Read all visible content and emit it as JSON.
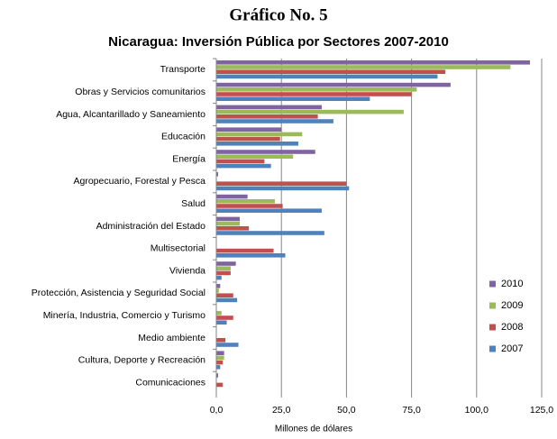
{
  "chart_data": {
    "type": "bar",
    "orientation": "horizontal",
    "title": "Gráfico No. 5",
    "subtitle": "Nicaragua: Inversión Pública por Sectores 2007-2010",
    "x_label": "Millones de dólares",
    "categories": [
      "Transporte",
      "Obras y Servicios comunitarios",
      "Agua, Alcantarillado y Saneamiento",
      "Educación",
      "Energía",
      "Agropecuario, Forestal y Pesca",
      "Salud",
      "Administración del Estado",
      "Multisectorial",
      "Vivienda",
      "Protección, Asistencia y Seguridad Social",
      "Minería, Industria, Comercio y Turismo",
      "Medio ambiente",
      "Cultura, Deporte y Recreación",
      "Comunicaciones"
    ],
    "series": [
      {
        "name": "2010",
        "color": "#8064a2",
        "values": [
          120.5,
          90,
          40.5,
          25,
          38,
          0.7,
          12,
          9,
          0,
          7.5,
          1.5,
          0,
          0,
          3,
          0.7
        ]
      },
      {
        "name": "2009",
        "color": "#9bbb59",
        "values": [
          113,
          77,
          72,
          33,
          29.5,
          0,
          22.5,
          9,
          0,
          5.5,
          1,
          2,
          0,
          3,
          0
        ]
      },
      {
        "name": "2008",
        "color": "#c0504d",
        "values": [
          88,
          75,
          39,
          24.5,
          18.5,
          50,
          25.5,
          12.5,
          22,
          5.5,
          6.5,
          6.5,
          3.5,
          2.5,
          2.5
        ]
      },
      {
        "name": "2007",
        "color": "#4f81bd",
        "values": [
          85,
          59,
          45,
          31.5,
          21,
          51,
          40.5,
          41.5,
          26.5,
          2,
          8,
          4,
          8.5,
          1.5,
          0
        ]
      }
    ],
    "xlim": [
      0,
      125
    ],
    "xticks": [
      {
        "value": 0,
        "label": "0,0"
      },
      {
        "value": 25,
        "label": "25,0"
      },
      {
        "value": 50,
        "label": "50,0"
      },
      {
        "value": 75,
        "label": "75,0"
      },
      {
        "value": 100,
        "label": "100,0"
      },
      {
        "value": 125,
        "label": "125,0"
      }
    ],
    "grid": true,
    "legend": "right"
  }
}
